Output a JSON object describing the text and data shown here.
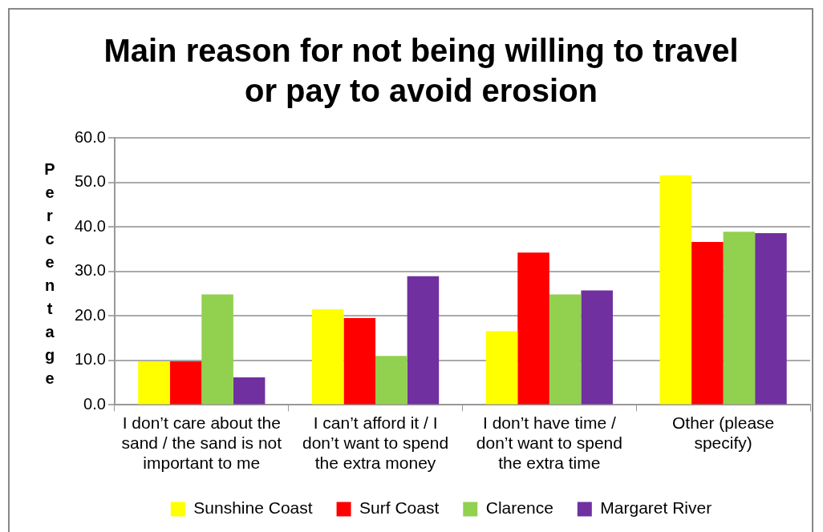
{
  "chart_data": {
    "type": "bar",
    "title": "Main reason for not being willing to travel or pay to avoid erosion",
    "ylabel": "Percentage",
    "categories": [
      "I don’t care about the sand / the sand is not important to me",
      "I can’t afford it / I don’t want to spend the extra money",
      "I don’t have time / don’t want to spend the extra time",
      "Other (please specify)"
    ],
    "series": [
      {
        "name": "Sunshine Coast",
        "color": "#ffff00",
        "values": [
          9.8,
          21.5,
          16.6,
          51.6
        ]
      },
      {
        "name": "Surf Coast",
        "color": "#ff0000",
        "values": [
          9.8,
          19.5,
          34.2,
          36.6
        ]
      },
      {
        "name": "Clarence",
        "color": "#92d050",
        "values": [
          24.8,
          11.0,
          24.8,
          38.9
        ]
      },
      {
        "name": "Margaret River",
        "color": "#7030a0",
        "values": [
          6.2,
          28.9,
          25.7,
          38.6
        ]
      }
    ],
    "ylim": [
      0,
      60
    ],
    "yticks": [
      {
        "value": 0,
        "label": "0.0"
      },
      {
        "value": 10,
        "label": "10.0"
      },
      {
        "value": 20,
        "label": "20.0"
      },
      {
        "value": 30,
        "label": "30.0"
      },
      {
        "value": 40,
        "label": "40.0"
      },
      {
        "value": 50,
        "label": "50.0"
      },
      {
        "value": 60,
        "label": "60.0"
      }
    ],
    "grid": "y",
    "legend": "bottom"
  }
}
